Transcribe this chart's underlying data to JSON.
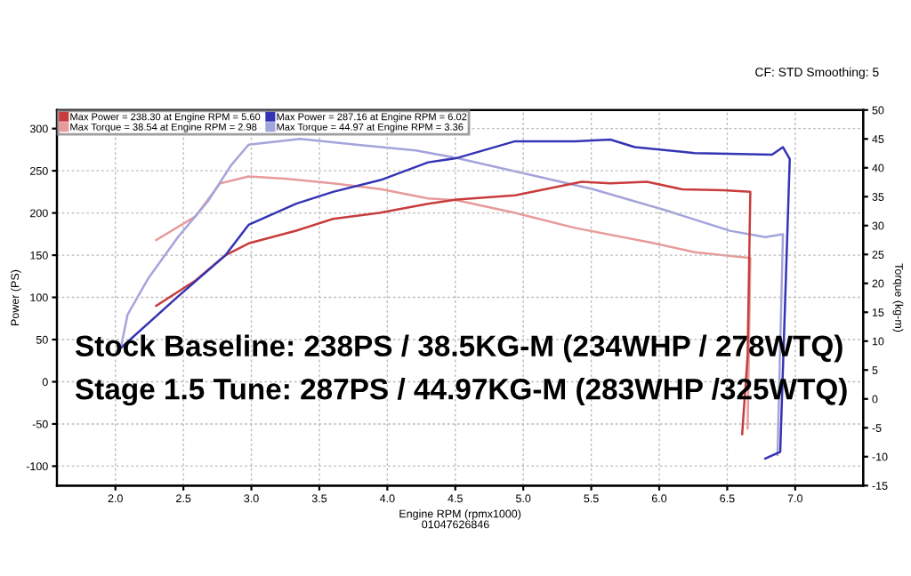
{
  "chart_data": {
    "type": "line",
    "xlabel": "Engine RPM (rpmx1000)",
    "ylabel": "Power (PS)",
    "y2label": "Torque (kg-m)",
    "xlim": [
      1.57,
      7.5
    ],
    "xticks": [
      {
        "value": 2.0,
        "label": "2.0"
      },
      {
        "value": 2.5,
        "label": "2.5"
      },
      {
        "value": 3.0,
        "label": "3.0"
      },
      {
        "value": 3.5,
        "label": "3.5"
      },
      {
        "value": 4.0,
        "label": "4.0"
      },
      {
        "value": 4.5,
        "label": "4.5"
      },
      {
        "value": 5.0,
        "label": "5.0"
      },
      {
        "value": 5.5,
        "label": "5.5"
      },
      {
        "value": 6.0,
        "label": "6.0"
      },
      {
        "value": 6.5,
        "label": "6.5"
      },
      {
        "value": 7.0,
        "label": "7.0"
      }
    ],
    "ylim": [
      -123,
      322
    ],
    "yticks": [
      -100,
      -50,
      0,
      50,
      100,
      150,
      200,
      250,
      300
    ],
    "y2lim": [
      -15,
      50
    ],
    "y2ticks": [
      -15,
      -10,
      -5,
      0,
      5,
      10,
      15,
      20,
      25,
      30,
      35,
      40,
      45,
      50
    ],
    "grid": true,
    "legend": "top left",
    "marker": "none",
    "line_style": "solid",
    "series": [
      {
        "name": "Max Power = 238.30 at Engine RPM = 5.60",
        "color": "#c83c3c",
        "x": [
          2.3,
          2.59,
          2.81,
          2.98,
          3.33,
          3.6,
          3.94,
          4.3,
          4.51,
          4.94,
          5.43,
          5.64,
          5.91,
          6.17,
          6.47,
          6.67,
          6.65,
          6.61
        ],
        "values": [
          90,
          120,
          150,
          164,
          179,
          193,
          200,
          211,
          216,
          221,
          237,
          235,
          237,
          228,
          227,
          225,
          30,
          -62
        ]
      },
      {
        "name": "Max Torque = 38.54 at Engine RPM = 2.98",
        "color": "#e89a9a",
        "axis": "y2",
        "x": [
          2.3,
          2.59,
          2.77,
          2.98,
          3.25,
          3.6,
          3.95,
          4.3,
          4.51,
          4.94,
          5.38,
          5.95,
          6.26,
          6.67,
          6.65
        ],
        "values": [
          27.5,
          31.6,
          37.3,
          38.5,
          38.1,
          37.3,
          36.3,
          34.7,
          34.4,
          32.2,
          29.6,
          27.0,
          25.4,
          24.4,
          -5.1
        ]
      },
      {
        "name": "Max Power = 287.16 at Engine RPM = 6.02",
        "color": "#3434b4",
        "x": [
          2.04,
          2.46,
          2.81,
          2.98,
          3.33,
          3.6,
          3.95,
          4.3,
          4.51,
          4.94,
          5.38,
          5.64,
          5.82,
          6.26,
          6.83,
          6.91,
          6.96,
          6.89,
          6.78
        ],
        "values": [
          40,
          101,
          150,
          186,
          211,
          225,
          239,
          260,
          265,
          285,
          285,
          287,
          278,
          271,
          269,
          278,
          264,
          -83,
          -91
        ]
      },
      {
        "name": "Max Torque = 44.97 at Engine RPM = 3.36",
        "color": "#a4a4dc",
        "axis": "y2",
        "x": [
          2.04,
          2.09,
          2.24,
          2.46,
          2.68,
          2.85,
          2.98,
          3.36,
          3.77,
          4.21,
          4.51,
          4.94,
          5.51,
          6.04,
          6.52,
          6.78,
          6.91,
          6.87
        ],
        "values": [
          8.9,
          14.6,
          20.8,
          28.0,
          34.2,
          40.4,
          44.0,
          45.0,
          44.0,
          43.0,
          41.7,
          39.4,
          36.3,
          32.7,
          29.1,
          28.0,
          28.5,
          -9.7
        ]
      }
    ],
    "annotations": [
      "Stock Baseline: 238PS / 38.5KG-M (234WHP / 278WTQ)",
      "Stage 1.5 Tune: 287PS / 44.97KG-M (283WHP /325WTQ)",
      "CF: STD Smoothing: 5",
      "01047626846"
    ]
  }
}
